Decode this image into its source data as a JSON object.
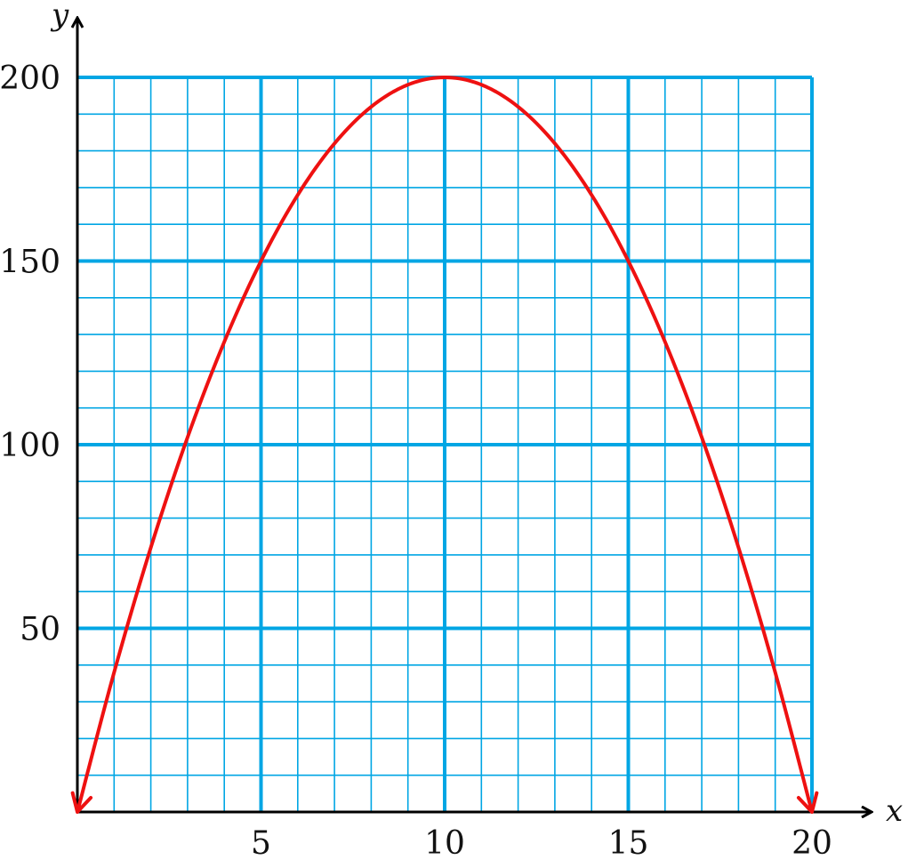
{
  "chart_data": {
    "type": "line",
    "title": "",
    "xlabel": "x",
    "ylabel": "y",
    "xlim": [
      0,
      20
    ],
    "ylim": [
      0,
      200
    ],
    "x_ticks": [
      5,
      10,
      15,
      20
    ],
    "y_ticks": [
      50,
      100,
      150,
      200
    ],
    "grid": {
      "on": true,
      "minor_x_step": 1,
      "minor_y_step": 10,
      "major_x_step": 5,
      "major_y_step": 50,
      "color": "#00a6e4"
    },
    "series": [
      {
        "color": "#ee1111",
        "function": "y = 40x - 2x^2",
        "x": [
          0,
          1,
          2,
          3,
          4,
          5,
          6,
          7,
          8,
          9,
          10,
          11,
          12,
          13,
          14,
          15,
          16,
          17,
          18,
          19,
          20
        ],
        "values": [
          0,
          38,
          72,
          102,
          128,
          150,
          168,
          182,
          192,
          198,
          200,
          198,
          192,
          182,
          168,
          150,
          128,
          102,
          72,
          38,
          0
        ],
        "arrows_at_ends": true
      }
    ]
  }
}
